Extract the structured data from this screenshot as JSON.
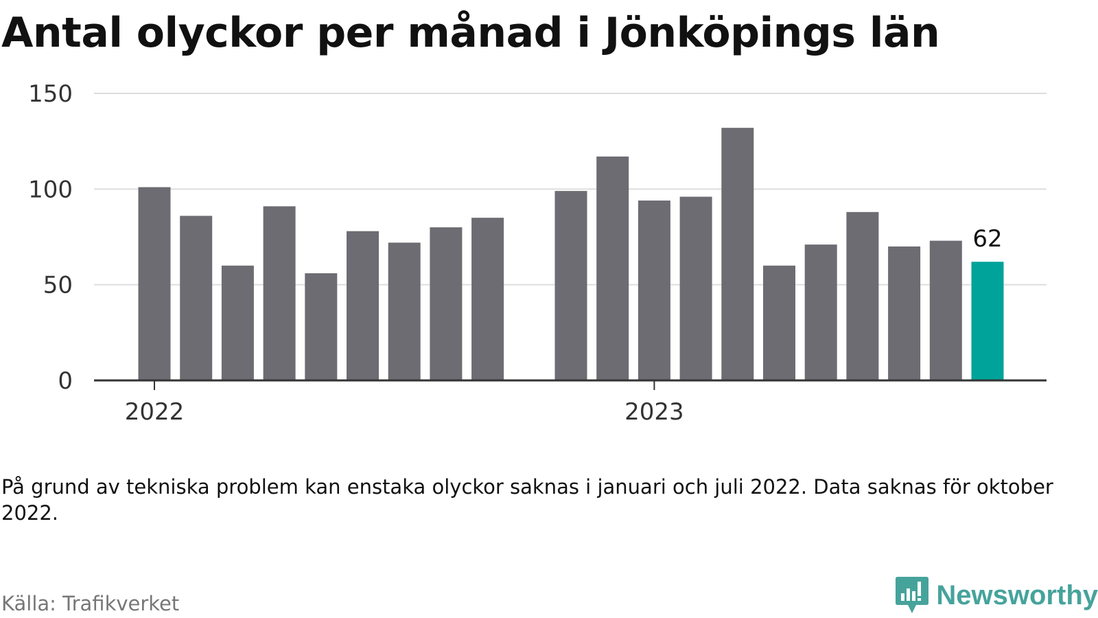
{
  "title": "Antal olyckor per månad i Jönköpings län",
  "note": "På grund av tekniska problem kan enstaka olyckor saknas i januari och juli 2022. Data saknas för oktober 2022.",
  "source": "Källa: Trafikverket",
  "logo": {
    "text": "Newsworthy",
    "icon": "newsworthy-bar-chart-icon",
    "color": "#46a39b"
  },
  "colors": {
    "bar": "#6d6c72",
    "highlight": "#00a39a",
    "grid": "#dddddd",
    "axis": "#333333"
  },
  "chart_data": {
    "type": "bar",
    "title": "Antal olyckor per månad i Jönköpings län",
    "xlabel": "",
    "ylabel": "",
    "ylim": [
      0,
      150
    ],
    "yticks": [
      0,
      50,
      100,
      150
    ],
    "grid": true,
    "x_tick_labels": [
      {
        "label": "2022",
        "at": "2022-01"
      },
      {
        "label": "2023",
        "at": "2023-01"
      }
    ],
    "points": [
      {
        "month": "2022-01",
        "value": 101
      },
      {
        "month": "2022-02",
        "value": 86
      },
      {
        "month": "2022-03",
        "value": 60
      },
      {
        "month": "2022-04",
        "value": 91
      },
      {
        "month": "2022-05",
        "value": 56
      },
      {
        "month": "2022-06",
        "value": 78
      },
      {
        "month": "2022-07",
        "value": 72
      },
      {
        "month": "2022-08",
        "value": 80
      },
      {
        "month": "2022-09",
        "value": 85
      },
      {
        "month": "2022-10",
        "value": null
      },
      {
        "month": "2022-11",
        "value": 99
      },
      {
        "month": "2022-12",
        "value": 117
      },
      {
        "month": "2023-01",
        "value": 94
      },
      {
        "month": "2023-02",
        "value": 96
      },
      {
        "month": "2023-03",
        "value": 132
      },
      {
        "month": "2023-04",
        "value": 60
      },
      {
        "month": "2023-05",
        "value": 71
      },
      {
        "month": "2023-06",
        "value": 88
      },
      {
        "month": "2023-07",
        "value": 70
      },
      {
        "month": "2023-08",
        "value": 73
      },
      {
        "month": "2023-09",
        "value": 62
      }
    ],
    "highlight": {
      "month": "2023-09",
      "value": 62,
      "label": "62"
    }
  }
}
